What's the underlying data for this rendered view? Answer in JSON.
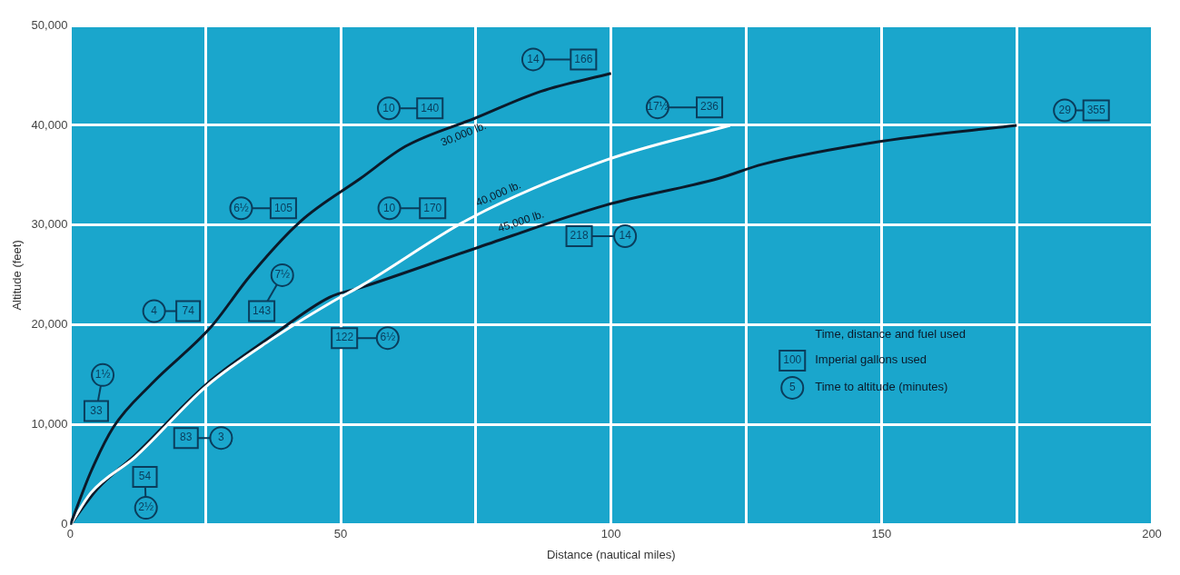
{
  "chart_data": {
    "type": "line",
    "xlabel": "Distance (nautical miles)",
    "ylabel": "Altitude (feet)",
    "legend_title": "Time, distance and fuel used",
    "grid": true,
    "xlim": [
      0,
      200
    ],
    "xticks": [
      0,
      {
        "value": 25,
        "label": null
      },
      50,
      {
        "value": 75,
        "label": null
      },
      100,
      {
        "value": 125,
        "label": null
      },
      150,
      {
        "value": 175,
        "label": null
      },
      200
    ],
    "ylim": [
      0,
      50000
    ],
    "yticks": [
      0,
      {
        "value": 10000,
        "label": "10,000"
      },
      {
        "value": 20000,
        "label": "20,000"
      },
      {
        "value": 30000,
        "label": "30,000"
      },
      {
        "value": 40000,
        "label": "40,000"
      },
      {
        "value": 50000,
        "label": "50,000"
      }
    ],
    "annotations": [
      {
        "text": "33",
        "x": 4.8,
        "y": 11400
      },
      {
        "text": "1½",
        "x": 6,
        "y": 15000
      },
      {
        "text": "74",
        "x": 21.8,
        "y": 21400
      },
      {
        "text": "4",
        "x": 15.5,
        "y": 21400
      },
      {
        "text": "105",
        "x": 39.4,
        "y": 31700
      },
      {
        "text": "6½",
        "x": 31.6,
        "y": 31700
      },
      {
        "text": "140",
        "x": 66.5,
        "y": 41700
      },
      {
        "text": "10",
        "x": 58.9,
        "y": 41700
      },
      {
        "text": "166",
        "x": 94.9,
        "y": 46600
      },
      {
        "text": "14",
        "x": 85.6,
        "y": 46600
      },
      {
        "text": "143",
        "x": 35.4,
        "y": 21400
      },
      {
        "text": "7½",
        "x": 39.2,
        "y": 25000
      },
      {
        "text": "170",
        "x": 67,
        "y": 31700
      },
      {
        "text": "10",
        "x": 59,
        "y": 31700
      },
      {
        "text": "236",
        "x": 118.2,
        "y": 41800
      },
      {
        "text": "17½",
        "x": 108.6,
        "y": 41800
      },
      {
        "text": "54",
        "x": 13.8,
        "y": 4800
      },
      {
        "text": "2½",
        "x": 14,
        "y": 1700
      },
      {
        "text": "83",
        "x": 21.4,
        "y": 8700
      },
      {
        "text": "3",
        "x": 27.9,
        "y": 8700
      },
      {
        "text": "122",
        "x": 50.7,
        "y": 18700
      },
      {
        "text": "6½",
        "x": 58.7,
        "y": 18700
      },
      {
        "text": "218",
        "x": 94.1,
        "y": 28900
      },
      {
        "text": "14",
        "x": 102.6,
        "y": 28900
      },
      {
        "text": "355",
        "x": 189.7,
        "y": 41500
      },
      {
        "text": "29",
        "x": 183.9,
        "y": 41500
      },
      "100",
      "Imperial gallons used",
      "5",
      "Time to altitude (minutes)"
    ],
    "series": [
      {
        "name": "30,000 lb.",
        "color": "#0b1a2a",
        "x": [
          0,
          3.8,
          8,
          15,
          26,
          33.2,
          42.6,
          53.7,
          62,
          74.8,
          87,
          100
        ],
        "values": [
          0,
          5300,
          9800,
          14100,
          19800,
          24900,
          30400,
          34700,
          37900,
          40700,
          43400,
          45200
        ]
      },
      {
        "name": "40,000 lb.",
        "color": "#ffffff",
        "x": [
          0,
          3.8,
          12,
          25,
          37,
          48,
          54,
          74,
          99,
          122
        ],
        "values": [
          0,
          3200,
          6800,
          13800,
          18500,
          22200,
          24000,
          30700,
          36500,
          40000
        ]
      },
      {
        "name": "45,000 lb.",
        "color": "#0b1a2a",
        "x": [
          0,
          5,
          12,
          25,
          37,
          48,
          54,
          75,
          99,
          120,
          128,
          150,
          175
        ],
        "values": [
          0,
          3600,
          7000,
          14000,
          18800,
          22800,
          23800,
          27700,
          32000,
          34700,
          36100,
          38400,
          40000
        ]
      }
    ]
  }
}
